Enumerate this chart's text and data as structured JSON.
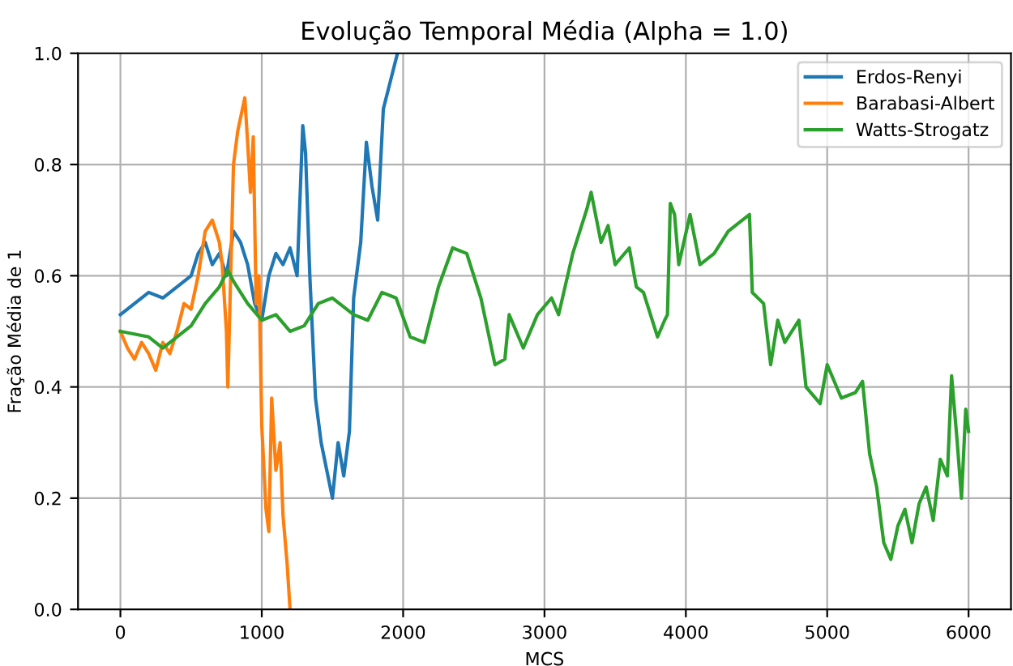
{
  "chart_data": {
    "type": "line",
    "title": "Evolução Temporal Média (Alpha = 1.0)",
    "xlabel": "MCS",
    "ylabel": "Fração Média de 1",
    "xlim": [
      -300,
      6300
    ],
    "ylim": [
      0,
      1
    ],
    "xticks": [
      0,
      1000,
      2000,
      3000,
      4000,
      5000,
      6000
    ],
    "yticks": [
      {
        "value": 0,
        "label": "0.0"
      },
      0.2,
      0.4,
      0.6,
      0.8,
      {
        "value": 1,
        "label": "1.0"
      }
    ],
    "grid": true,
    "legend": "top right",
    "marker": "none",
    "line_style": "solid",
    "series": [
      {
        "name": "Erdos-Renyi",
        "color": "#1f77b4",
        "x": [
          0,
          100,
          200,
          300,
          400,
          500,
          550,
          600,
          650,
          700,
          750,
          800,
          850,
          900,
          950,
          1000,
          1050,
          1100,
          1150,
          1200,
          1250,
          1290,
          1310,
          1340,
          1380,
          1420,
          1460,
          1500,
          1540,
          1580,
          1620,
          1650,
          1700,
          1740,
          1780,
          1820,
          1860,
          1900,
          1960
        ],
        "values": [
          0.53,
          0.55,
          0.57,
          0.56,
          0.58,
          0.6,
          0.64,
          0.66,
          0.62,
          0.64,
          0.6,
          0.68,
          0.66,
          0.62,
          0.55,
          0.52,
          0.6,
          0.64,
          0.62,
          0.65,
          0.6,
          0.87,
          0.82,
          0.6,
          0.38,
          0.3,
          0.25,
          0.2,
          0.3,
          0.24,
          0.32,
          0.56,
          0.66,
          0.84,
          0.76,
          0.7,
          0.9,
          0.94,
          1.0
        ]
      },
      {
        "name": "Barabasi-Albert",
        "color": "#ff7f0e",
        "x": [
          0,
          50,
          100,
          150,
          200,
          250,
          300,
          350,
          400,
          450,
          500,
          550,
          600,
          650,
          700,
          720,
          750,
          760,
          800,
          830,
          880,
          900,
          920,
          940,
          960,
          980,
          1000,
          1030,
          1050,
          1070,
          1100,
          1130,
          1150,
          1180,
          1200
        ],
        "values": [
          0.5,
          0.47,
          0.45,
          0.48,
          0.46,
          0.43,
          0.48,
          0.46,
          0.5,
          0.55,
          0.54,
          0.6,
          0.68,
          0.7,
          0.66,
          0.62,
          0.5,
          0.4,
          0.8,
          0.86,
          0.92,
          0.84,
          0.75,
          0.85,
          0.55,
          0.6,
          0.33,
          0.18,
          0.14,
          0.38,
          0.25,
          0.3,
          0.17,
          0.08,
          0.0
        ]
      },
      {
        "name": "Watts-Strogatz",
        "color": "#2ca02c",
        "x": [
          0,
          200,
          300,
          400,
          500,
          600,
          700,
          760,
          800,
          900,
          1000,
          1100,
          1200,
          1300,
          1400,
          1500,
          1650,
          1750,
          1850,
          1950,
          2050,
          2150,
          2250,
          2350,
          2450,
          2550,
          2650,
          2720,
          2750,
          2850,
          2950,
          3050,
          3100,
          3200,
          3300,
          3330,
          3400,
          3450,
          3500,
          3600,
          3650,
          3700,
          3800,
          3850,
          3870,
          3890,
          3920,
          3950,
          4030,
          4100,
          4200,
          4300,
          4400,
          4450,
          4470,
          4550,
          4600,
          4650,
          4700,
          4800,
          4850,
          4950,
          5000,
          5050,
          5100,
          5200,
          5250,
          5300,
          5350,
          5400,
          5450,
          5500,
          5550,
          5600,
          5650,
          5700,
          5750,
          5800,
          5850,
          5880,
          5920,
          5950,
          5980,
          6000
        ],
        "values": [
          0.5,
          0.49,
          0.47,
          0.49,
          0.51,
          0.55,
          0.58,
          0.61,
          0.59,
          0.55,
          0.52,
          0.53,
          0.5,
          0.51,
          0.55,
          0.56,
          0.53,
          0.52,
          0.57,
          0.56,
          0.49,
          0.48,
          0.58,
          0.65,
          0.64,
          0.56,
          0.44,
          0.45,
          0.53,
          0.47,
          0.53,
          0.56,
          0.53,
          0.64,
          0.72,
          0.75,
          0.66,
          0.69,
          0.62,
          0.65,
          0.58,
          0.57,
          0.49,
          0.52,
          0.53,
          0.73,
          0.71,
          0.62,
          0.71,
          0.62,
          0.64,
          0.68,
          0.7,
          0.71,
          0.57,
          0.55,
          0.44,
          0.52,
          0.48,
          0.52,
          0.4,
          0.37,
          0.44,
          0.41,
          0.38,
          0.39,
          0.41,
          0.28,
          0.22,
          0.12,
          0.09,
          0.15,
          0.18,
          0.12,
          0.19,
          0.22,
          0.16,
          0.27,
          0.24,
          0.42,
          0.3,
          0.2,
          0.36,
          0.32
        ]
      }
    ]
  }
}
